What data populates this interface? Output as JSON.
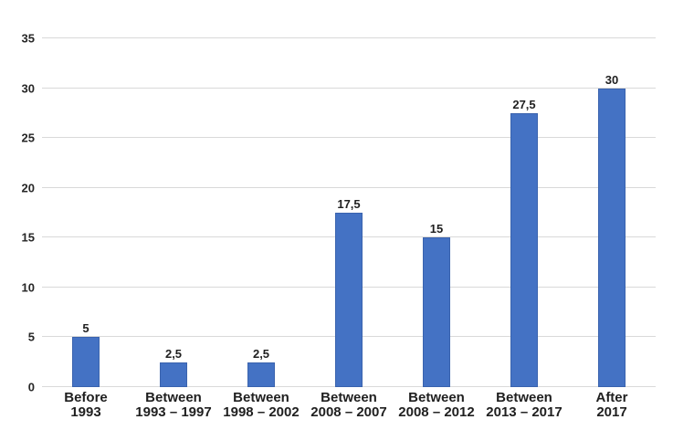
{
  "chart_data": {
    "type": "bar",
    "title": "",
    "xlabel": "",
    "ylabel": "",
    "categories": [
      {
        "lines": [
          "Before",
          "1993"
        ]
      },
      {
        "lines": [
          "Between",
          "1993 – 1997"
        ]
      },
      {
        "lines": [
          "Between",
          "1998 – 2002"
        ]
      },
      {
        "lines": [
          "Between",
          "2008 – 2007"
        ]
      },
      {
        "lines": [
          "Between",
          "2008 – 2012"
        ]
      },
      {
        "lines": [
          "Between",
          "2013 – 2017"
        ]
      },
      {
        "lines": [
          "After",
          "2017"
        ]
      }
    ],
    "values": [
      5,
      2.5,
      2.5,
      17.5,
      15,
      27.5,
      30
    ],
    "value_labels": [
      "5",
      "2,5",
      "2,5",
      "17,5",
      "15",
      "27,5",
      "30"
    ],
    "y_ticks": [
      0,
      5,
      10,
      15,
      20,
      25,
      30,
      35
    ],
    "y_tick_labels": [
      "0",
      "5",
      "10",
      "15",
      "20",
      "25",
      "30",
      "35"
    ],
    "ylim": [
      0,
      35
    ],
    "grid": true,
    "legend": false,
    "colors": {
      "bar_fill": "#4472C4",
      "bar_edge": "#3A63AE",
      "gridline": "#D9D9D9",
      "tick_text": "#262626",
      "label_text": "#1F1F1F",
      "background": "#FFFFFF"
    }
  }
}
